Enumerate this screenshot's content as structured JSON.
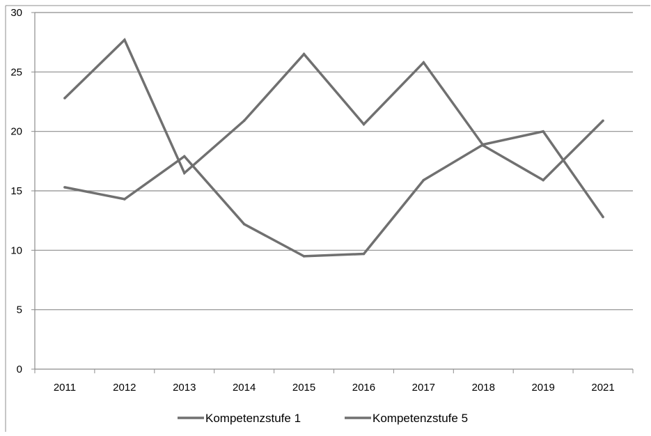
{
  "chart_data": {
    "type": "line",
    "title": "",
    "xlabel": "",
    "ylabel": "",
    "categories": [
      "2011",
      "2012",
      "2013",
      "2014",
      "2015",
      "2016",
      "2017",
      "2018",
      "2019",
      "2021"
    ],
    "ylim": [
      0,
      30
    ],
    "yticks": [
      0,
      5,
      10,
      15,
      20,
      25,
      30
    ],
    "grid": "horizontal",
    "legend_position": "bottom",
    "series": [
      {
        "name": "Kompetenzstufe 1",
        "values": [
          15.3,
          14.3,
          17.9,
          12.2,
          9.5,
          9.7,
          15.9,
          18.9,
          20.0,
          12.8
        ],
        "color": "#707070"
      },
      {
        "name": "Kompetenzstufe 5",
        "values": [
          22.8,
          27.7,
          16.5,
          20.9,
          26.5,
          20.6,
          25.8,
          18.8,
          15.9,
          20.9
        ],
        "color": "#707070"
      }
    ]
  },
  "colors": {
    "gridline": "#8c8c8c",
    "axis": "#8c8c8c",
    "frame": "#8c8c8c",
    "line": "#707070"
  }
}
